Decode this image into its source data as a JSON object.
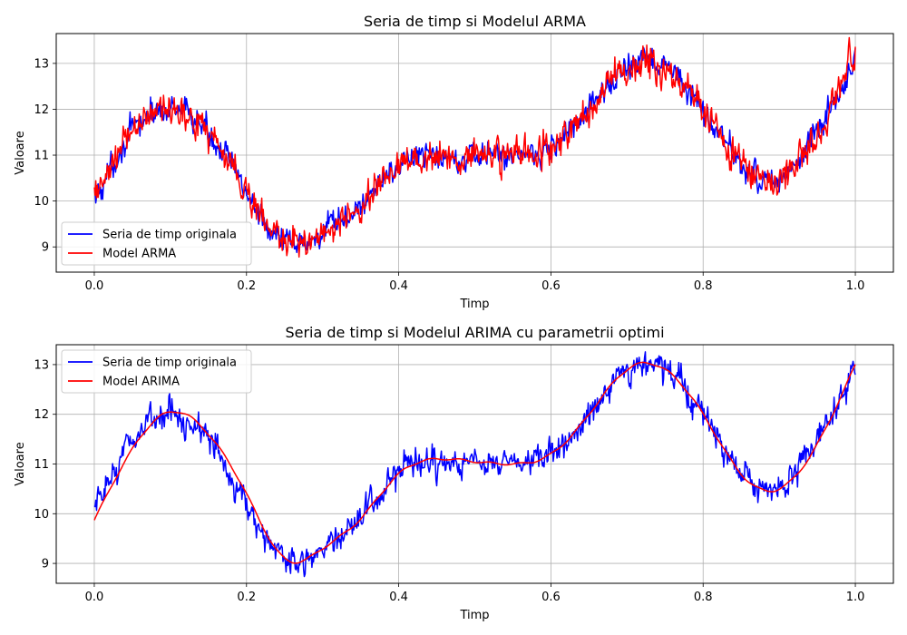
{
  "chart_data": [
    {
      "type": "line",
      "title": "Seria de timp si Modelul ARMA",
      "xlabel": "Timp",
      "ylabel": "Valoare",
      "xlim": [
        -0.05,
        1.05
      ],
      "ylim": [
        8.45,
        13.65
      ],
      "xticks": [
        0.0,
        0.2,
        0.4,
        0.6,
        0.8,
        1.0
      ],
      "xtick_labels": [
        "0.0",
        "0.2",
        "0.4",
        "0.6",
        "0.8",
        "1.0"
      ],
      "yticks": [
        9,
        10,
        11,
        12,
        13
      ],
      "ytick_labels": [
        "9",
        "10",
        "11",
        "12",
        "13"
      ],
      "grid": true,
      "legend_position": "lower-left",
      "series": [
        {
          "name": "Seria de timp originala",
          "color": "#0000ff",
          "x": [
            0.0,
            0.05,
            0.1,
            0.15,
            0.2,
            0.25,
            0.3,
            0.35,
            0.4,
            0.45,
            0.5,
            0.55,
            0.6,
            0.65,
            0.7,
            0.75,
            0.8,
            0.85,
            0.9,
            0.95,
            1.0
          ],
          "values": [
            10.0,
            11.5,
            12.0,
            11.5,
            10.2,
            9.1,
            9.3,
            9.9,
            10.8,
            11.0,
            11.0,
            11.0,
            11.2,
            12.0,
            12.9,
            12.9,
            12.0,
            10.8,
            10.5,
            11.5,
            13.0
          ]
        },
        {
          "name": "Model ARMA",
          "color": "#ff0000",
          "x": [
            0.0,
            0.05,
            0.1,
            0.15,
            0.2,
            0.25,
            0.3,
            0.35,
            0.4,
            0.45,
            0.5,
            0.55,
            0.6,
            0.65,
            0.7,
            0.75,
            0.8,
            0.85,
            0.9,
            0.95,
            1.0
          ],
          "values": [
            10.0,
            11.5,
            12.0,
            11.5,
            10.2,
            9.1,
            9.3,
            9.9,
            10.8,
            11.0,
            11.0,
            11.0,
            11.2,
            12.0,
            12.9,
            12.9,
            12.0,
            10.8,
            10.5,
            11.5,
            13.3
          ]
        }
      ]
    },
    {
      "type": "line",
      "title": "Seria de timp si Modelul ARIMA cu parametrii optimi",
      "xlabel": "Timp",
      "ylabel": "Valoare",
      "xlim": [
        -0.05,
        1.05
      ],
      "ylim": [
        8.6,
        13.4
      ],
      "xticks": [
        0.0,
        0.2,
        0.4,
        0.6,
        0.8,
        1.0
      ],
      "xtick_labels": [
        "0.0",
        "0.2",
        "0.4",
        "0.6",
        "0.8",
        "1.0"
      ],
      "yticks": [
        9,
        10,
        11,
        12,
        13
      ],
      "ytick_labels": [
        "9",
        "10",
        "11",
        "12",
        "13"
      ],
      "grid": true,
      "legend_position": "upper-left",
      "series": [
        {
          "name": "Seria de timp originala",
          "color": "#0000ff",
          "x": [
            0.0,
            0.05,
            0.1,
            0.15,
            0.2,
            0.25,
            0.3,
            0.35,
            0.4,
            0.45,
            0.5,
            0.55,
            0.6,
            0.65,
            0.7,
            0.75,
            0.8,
            0.85,
            0.9,
            0.95,
            1.0
          ],
          "values": [
            10.0,
            11.5,
            12.0,
            11.5,
            10.2,
            9.1,
            9.3,
            9.9,
            10.8,
            11.0,
            11.0,
            11.0,
            11.2,
            12.0,
            12.9,
            12.9,
            12.0,
            10.8,
            10.5,
            11.5,
            13.0
          ]
        },
        {
          "name": "Model ARIMA",
          "color": "#ff0000",
          "x": [
            0.0,
            0.05,
            0.1,
            0.15,
            0.2,
            0.25,
            0.3,
            0.35,
            0.4,
            0.45,
            0.5,
            0.55,
            0.6,
            0.65,
            0.7,
            0.75,
            0.8,
            0.85,
            0.9,
            0.95,
            1.0
          ],
          "values": [
            9.87,
            11.3,
            12.05,
            11.6,
            10.4,
            9.1,
            9.3,
            9.9,
            10.8,
            11.1,
            11.05,
            11.0,
            11.2,
            12.0,
            12.9,
            12.9,
            12.0,
            10.8,
            10.5,
            11.4,
            13.0
          ]
        }
      ]
    }
  ]
}
